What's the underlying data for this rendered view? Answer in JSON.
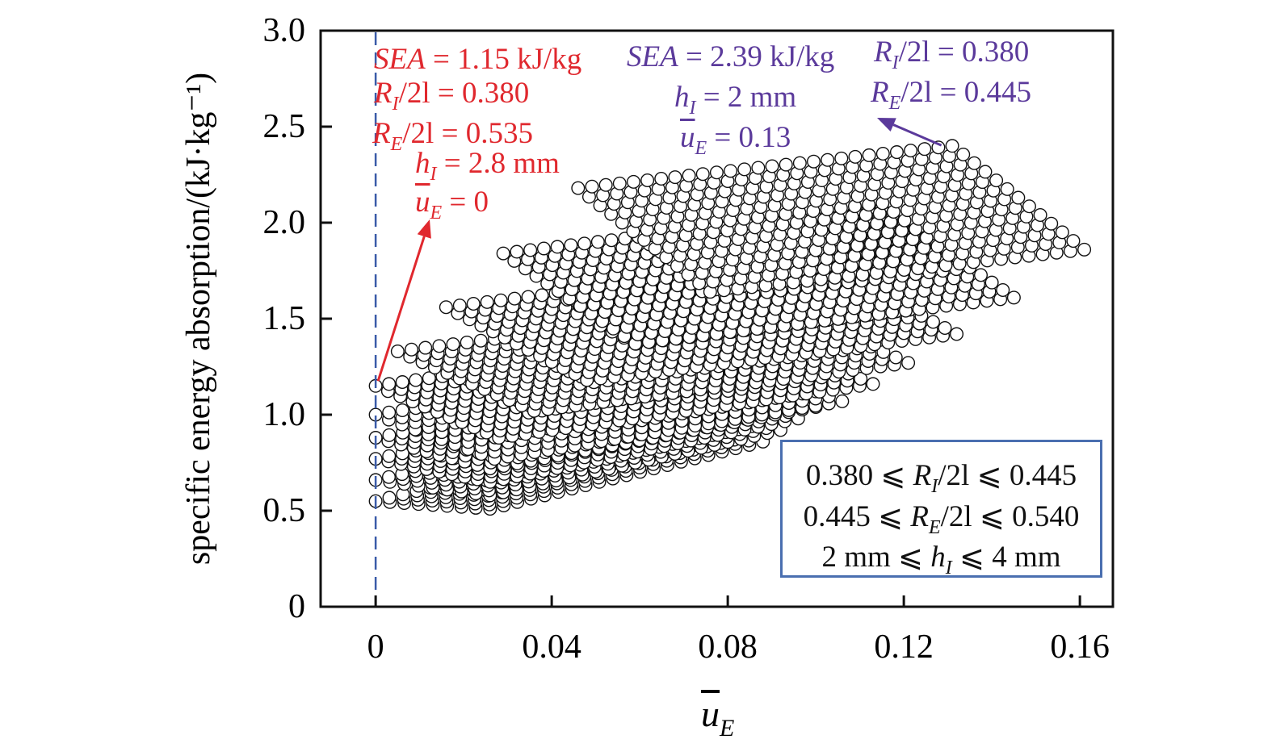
{
  "chart_data": {
    "type": "scatter",
    "xlabel": {
      "var": "u",
      "sub": "E"
    },
    "ylabel": "specific energy absorption/(kJ·kg⁻¹)",
    "xlim": [
      -0.0125,
      0.1675
    ],
    "ylim": [
      0,
      3.0
    ],
    "xticks": [
      "0",
      "0.04",
      "0.08",
      "0.12",
      "0.16"
    ],
    "xtick_values": [
      0,
      0.04,
      0.08,
      0.12,
      0.16
    ],
    "yticks": [
      "0",
      "0.5",
      "1.0",
      "1.5",
      "2.0",
      "2.5",
      "3.0"
    ],
    "ytick_values": [
      0,
      0.5,
      1.0,
      1.5,
      2.0,
      2.5,
      3.0
    ],
    "grid": false,
    "marker": "open-circle",
    "reference_line": {
      "x": 0,
      "style": "dashed",
      "color": "#3a5ba8"
    },
    "bands": [
      {
        "left_tip": [
          0.0,
          0.55
        ],
        "peak": [
          0.062,
          0.9
        ],
        "right_tip": [
          0.088,
          0.86
        ]
      },
      {
        "left_tip": [
          0.0,
          0.66
        ],
        "peak": [
          0.066,
          1.0
        ],
        "right_tip": [
          0.092,
          0.92
        ]
      },
      {
        "left_tip": [
          0.0,
          0.77
        ],
        "peak": [
          0.07,
          1.1
        ],
        "right_tip": [
          0.096,
          0.98
        ]
      },
      {
        "left_tip": [
          0.0,
          0.88
        ],
        "peak": [
          0.074,
          1.2
        ],
        "right_tip": [
          0.1,
          1.04
        ]
      },
      {
        "left_tip": [
          0.0,
          1.0
        ],
        "peak": [
          0.079,
          1.3
        ],
        "right_tip": [
          0.106,
          1.07
        ]
      },
      {
        "left_tip": [
          0.0,
          1.15
        ],
        "peak": [
          0.085,
          1.43
        ],
        "right_tip": [
          0.113,
          1.16
        ]
      },
      {
        "left_tip": [
          0.005,
          1.33
        ],
        "peak": [
          0.09,
          1.58
        ],
        "right_tip": [
          0.121,
          1.27
        ]
      },
      {
        "left_tip": [
          0.016,
          1.56
        ],
        "peak": [
          0.1,
          1.8
        ],
        "right_tip": [
          0.132,
          1.42
        ]
      },
      {
        "left_tip": [
          0.029,
          1.84
        ],
        "peak": [
          0.115,
          2.08
        ],
        "right_tip": [
          0.145,
          1.61
        ]
      },
      {
        "left_tip": [
          0.046,
          2.18
        ],
        "peak": [
          0.131,
          2.4
        ],
        "right_tip": [
          0.161,
          1.86
        ]
      }
    ],
    "highlighted_points": [
      {
        "x": 0,
        "y": 1.15,
        "color": "#e0282e"
      },
      {
        "x": 0.13,
        "y": 2.39,
        "color": "#5b3a9b"
      }
    ]
  },
  "annotations": {
    "min_point": {
      "color": "#e0282e",
      "lines": [
        {
          "var": "SEA",
          "sub": "",
          "rest": " = 1.15 kJ/kg"
        },
        {
          "var": "R",
          "sub": "I",
          "rest": "/2l = 0.380"
        },
        {
          "var": "R",
          "sub": "E",
          "rest": "/2l = 0.535"
        },
        {
          "var": "h",
          "sub": "I",
          "rest": " = 2.8 mm"
        },
        {
          "var": "u",
          "sub": "E",
          "rest": " = 0"
        }
      ]
    },
    "max_point": {
      "color": "#5b3a9b",
      "lines": [
        {
          "var": "SEA",
          "sub": "",
          "rest": " = 2.39 kJ/kg"
        },
        {
          "var": "h",
          "sub": "I",
          "rest": " = 2 mm"
        },
        {
          "var": "u",
          "sub": "E",
          "rest": " = 0.13"
        },
        {
          "var": "R",
          "sub": "I",
          "rest": "/2l = 0.380"
        },
        {
          "var": "R",
          "sub": "E",
          "rest": "/2l = 0.445"
        }
      ]
    },
    "range_box": {
      "color": "#4a6fb0",
      "lines": [
        {
          "pre": "0.380 ⩽ ",
          "var": "R",
          "sub": "I",
          "rest": "/2l ⩽ 0.445"
        },
        {
          "pre": "0.445 ⩽ ",
          "var": "R",
          "sub": "E",
          "rest": "/2l ⩽ 0.540"
        },
        {
          "pre": "2 mm ⩽ ",
          "var": "h",
          "sub": "I",
          "rest": " ⩽ 4 mm"
        }
      ]
    }
  }
}
